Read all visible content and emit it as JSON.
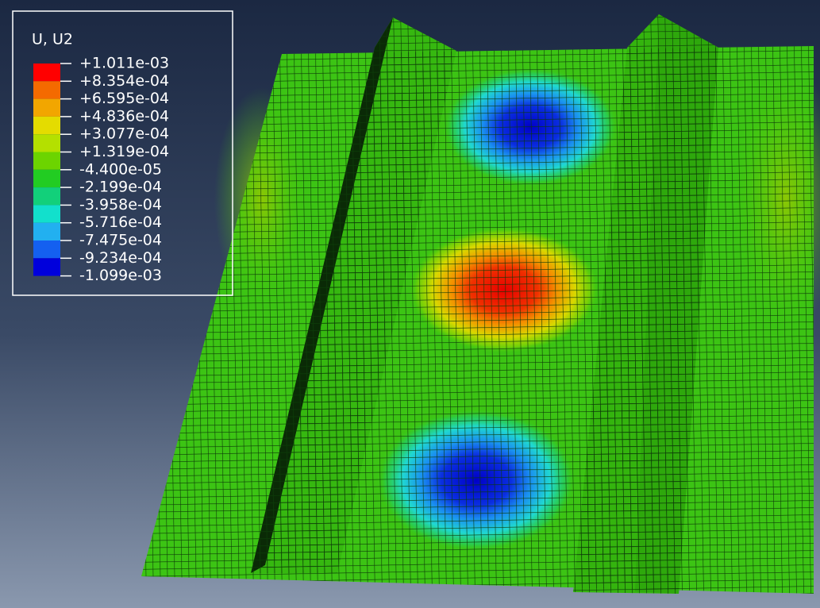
{
  "legend": {
    "title": "U, U2",
    "labels": [
      "+1.011e-03",
      "+8.354e-04",
      "+6.595e-04",
      "+4.836e-04",
      "+3.077e-04",
      "+1.319e-04",
      "-4.400e-05",
      "-2.199e-04",
      "-3.958e-04",
      "-5.716e-04",
      "-7.475e-04",
      "-9.234e-04",
      "-1.099e-03"
    ],
    "colors": [
      "#ff0000",
      "#f46a00",
      "#f2a600",
      "#e4dc00",
      "#b4e000",
      "#6cd400",
      "#22cc22",
      "#12d07a",
      "#12e0cc",
      "#22b0f0",
      "#1460f0",
      "#0000dc"
    ]
  }
}
